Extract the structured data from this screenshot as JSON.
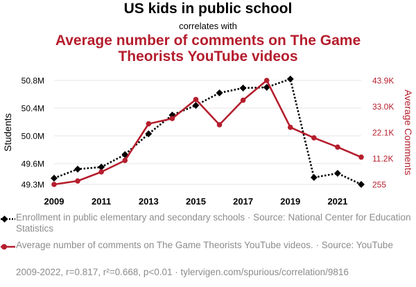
{
  "title": "US kids in public school",
  "subtitle": "correlates with",
  "comparison_title": "Average number of comments on The Game Theorists YouTube videos",
  "footnote": "2009-2022, r=0.817, r²=0.668, p<0.01 · tylervigen.com/spurious/correlation/9816",
  "colors": {
    "series1": "#000000",
    "series2": "#b51e2d",
    "grid": "#e6e6e6",
    "legend_text": "#8c8c8c"
  },
  "chart_data": {
    "type": "line",
    "x": [
      2009,
      2010,
      2011,
      2012,
      2013,
      2014,
      2015,
      2016,
      2017,
      2018,
      2019,
      2020,
      2021,
      2022
    ],
    "xlabel": "",
    "x_ticks": [
      "2009",
      "2011",
      "2013",
      "2015",
      "2017",
      "2019",
      "2021"
    ],
    "xlim": [
      2009,
      2022
    ],
    "y_left": {
      "label": "Students",
      "ticks": [
        {
          "v": 49.3,
          "label": "49.3M"
        },
        {
          "v": 49.6,
          "label": "49.6M"
        },
        {
          "v": 50.0,
          "label": "50.0M"
        },
        {
          "v": 50.4,
          "label": "50.4M"
        },
        {
          "v": 50.8,
          "label": "50.8M"
        }
      ],
      "lim": [
        49.3,
        50.8
      ]
    },
    "y_right": {
      "label": "Average Comments",
      "ticks": [
        {
          "v": 255,
          "label": "255"
        },
        {
          "v": 11200,
          "label": "11.2K"
        },
        {
          "v": 22100,
          "label": "22.1K"
        },
        {
          "v": 33000,
          "label": "33.0K"
        },
        {
          "v": 43900,
          "label": "43.9K"
        }
      ],
      "lim": [
        255,
        43900
      ]
    },
    "grid": true,
    "series": [
      {
        "name": "Enrollment in public elementary and secondary schools · Source: National Center for Education Statistics",
        "axis": "left",
        "style": "dotted",
        "marker": "diamond",
        "values": [
          49.39,
          49.52,
          49.55,
          49.73,
          50.03,
          50.3,
          50.44,
          50.62,
          50.69,
          50.7,
          50.82,
          49.4,
          49.46,
          49.3
        ]
      },
      {
        "name": "Average number of comments on The Game Theorists YouTube videos. · Source: YouTube",
        "axis": "right",
        "style": "solid",
        "marker": "circle",
        "values": [
          255,
          1700,
          5500,
          10300,
          25700,
          27900,
          35900,
          25300,
          35600,
          43900,
          24200,
          19800,
          15900,
          11700
        ]
      }
    ]
  }
}
